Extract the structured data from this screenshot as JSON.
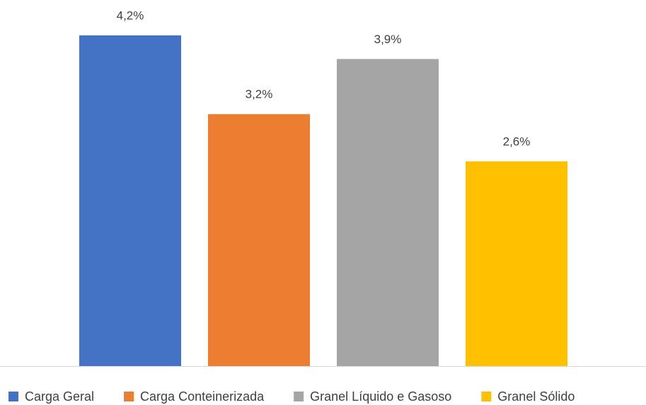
{
  "chart_data": {
    "type": "bar",
    "series": [
      {
        "name": "Carga Geral",
        "color": "#4472c4",
        "values": [
          4.2
        ],
        "value_labels": [
          "4,2%"
        ]
      },
      {
        "name": "Carga Conteinerizada",
        "color": "#ed7d31",
        "values": [
          3.2
        ],
        "value_labels": [
          "3,2%"
        ]
      },
      {
        "name": "Granel Líquido e Gasoso",
        "color": "#a5a5a5",
        "values": [
          3.9
        ],
        "value_labels": [
          "3,9%"
        ]
      },
      {
        "name": "Granel Sólido",
        "color": "#ffc000",
        "values": [
          2.6
        ],
        "value_labels": [
          "2,6%"
        ]
      }
    ],
    "legend": "bottom"
  }
}
